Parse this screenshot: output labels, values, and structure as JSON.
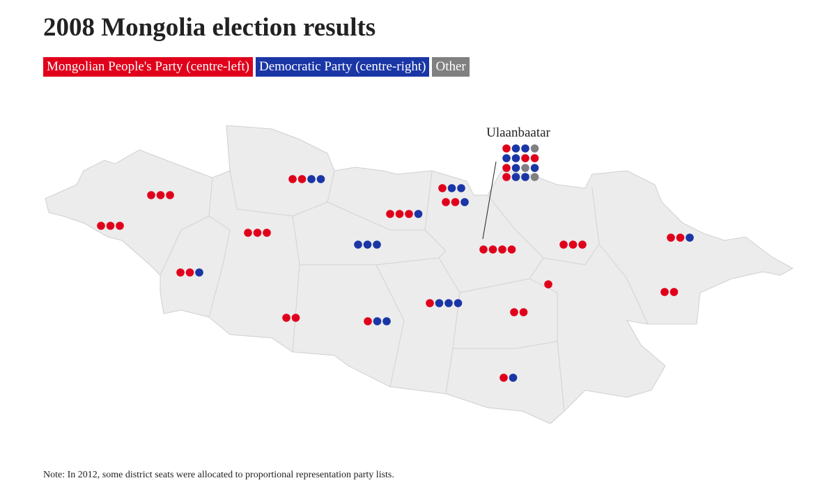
{
  "header": {
    "title": "2008 Mongolia election results"
  },
  "legend": [
    {
      "label": "Mongolian People's Party (centre-left)",
      "color": "#e0001b"
    },
    {
      "label": "Democratic Party (centre-right)",
      "color": "#1a36a6"
    },
    {
      "label": "Other",
      "color": "#808080"
    }
  ],
  "map": {
    "annotation": "Ulaanbaatar"
  },
  "note": "Note: In 2012, some district seats were allocated to proportional representation party lists."
}
